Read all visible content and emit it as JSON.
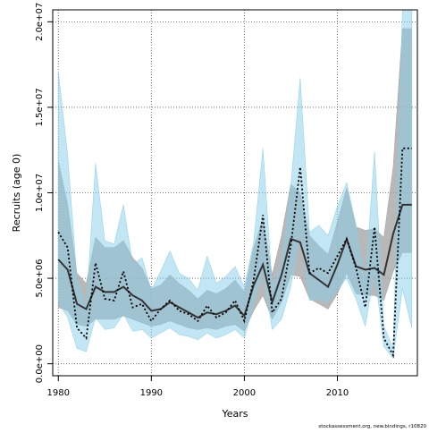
{
  "chart_data": {
    "type": "line",
    "xlabel": "Years",
    "ylabel": "Recruits (age 0)",
    "caption": "stockassessment.org, new.bindings, r10820",
    "xlim": [
      1979.4,
      2018.6
    ],
    "ylim": [
      -700000,
      20700000
    ],
    "x_ticks": [
      1980,
      1990,
      2000,
      2010
    ],
    "x_tick_labels": [
      "1980",
      "1990",
      "2000",
      "2010"
    ],
    "y_ticks": [
      0,
      5000000,
      10000000,
      15000000,
      20000000
    ],
    "y_tick_labels": [
      "0.0e+00",
      "5.0e+06",
      "1.0e+07",
      "1.5e+07",
      "2.0e+07"
    ],
    "grid": true,
    "x": [
      1980,
      1981,
      1982,
      1983,
      1984,
      1985,
      1986,
      1987,
      1988,
      1989,
      1990,
      1991,
      1992,
      1993,
      1994,
      1995,
      1996,
      1997,
      1998,
      1999,
      2000,
      2001,
      2002,
      2003,
      2004,
      2005,
      2006,
      2007,
      2008,
      2009,
      2010,
      2011,
      2012,
      2013,
      2014,
      2015,
      2016,
      2017,
      2018
    ],
    "series": [
      {
        "style": "solid-dark",
        "color": "#333333",
        "band_color": "#a0a0a0",
        "values": [
          6100000,
          5500000,
          3500000,
          3200000,
          4500000,
          4200000,
          4200000,
          4500000,
          4000000,
          3700000,
          3100000,
          3200000,
          3600000,
          3300000,
          3000000,
          2700000,
          3000000,
          2900000,
          3100000,
          3400000,
          2800000,
          4600000,
          5800000,
          3600000,
          5200000,
          7300000,
          7100000,
          5300000,
          4900000,
          4500000,
          5800000,
          7300000,
          5700000,
          5500000,
          5600000,
          5200000,
          7600000,
          9300000,
          9300000
        ],
        "lower": [
          3300000,
          3100000,
          2300000,
          2200000,
          2600000,
          2600000,
          2600000,
          2800000,
          2600000,
          2400000,
          2200000,
          2300000,
          2500000,
          2300000,
          2100000,
          2000000,
          2100000,
          2000000,
          2200000,
          2300000,
          1900000,
          3100000,
          4000000,
          2600000,
          3600000,
          5200000,
          5100000,
          3800000,
          3500000,
          3200000,
          4100000,
          5300000,
          4100000,
          4000000,
          4000000,
          3700000,
          5400000,
          6500000,
          6500000
        ],
        "upper": [
          11900000,
          9300000,
          5300000,
          4700000,
          7400000,
          6800000,
          6800000,
          7200000,
          6200000,
          5600000,
          4400000,
          4600000,
          5200000,
          4700000,
          4300000,
          3800000,
          4300000,
          4100000,
          4400000,
          4900000,
          4200000,
          6800000,
          8500000,
          5200000,
          7500000,
          10500000,
          10000000,
          7500000,
          6900000,
          6400000,
          8300000,
          10300000,
          8000000,
          7800000,
          7900000,
          7400000,
          11500000,
          19600000,
          19600000
        ]
      },
      {
        "style": "dotted",
        "color": "#000000",
        "band_color": "#87ceeb",
        "values": [
          7700000,
          6800000,
          2100000,
          1500000,
          5900000,
          3800000,
          3700000,
          5400000,
          3300000,
          3500000,
          2500000,
          3200000,
          3700000,
          3100000,
          2900000,
          2500000,
          3400000,
          2700000,
          3000000,
          3700000,
          2500000,
          4900000,
          8700000,
          3000000,
          3800000,
          6900000,
          11500000,
          5300000,
          5600000,
          5300000,
          6300000,
          7300000,
          5600000,
          3300000,
          8000000,
          1500000,
          500000,
          12600000,
          12600000
        ],
        "lower": [
          3600000,
          2700000,
          900000,
          700000,
          2700000,
          2000000,
          2100000,
          2900000,
          1900000,
          2000000,
          1500000,
          1800000,
          2100000,
          1700000,
          1600000,
          1400000,
          1800000,
          1500000,
          1700000,
          2000000,
          1500000,
          3500000,
          5500000,
          2000000,
          2600000,
          4500000,
          7800000,
          3700000,
          3800000,
          3600000,
          4300000,
          5000000,
          3800000,
          2200000,
          5400000,
          1000000,
          300000,
          4400000,
          2100000
        ],
        "upper": [
          17100000,
          12200000,
          5000000,
          3300000,
          11700000,
          7200000,
          7000000,
          9300000,
          5800000,
          6200000,
          4300000,
          5400000,
          6600000,
          5300000,
          5000000,
          4300000,
          6300000,
          4700000,
          5100000,
          5700000,
          4500000,
          7100000,
          12600000,
          4500000,
          5700000,
          10400000,
          16700000,
          7700000,
          8100000,
          7500000,
          9200000,
          10600000,
          8100000,
          4700000,
          12400000,
          2200000,
          900000,
          20700000,
          20700000
        ]
      }
    ]
  }
}
